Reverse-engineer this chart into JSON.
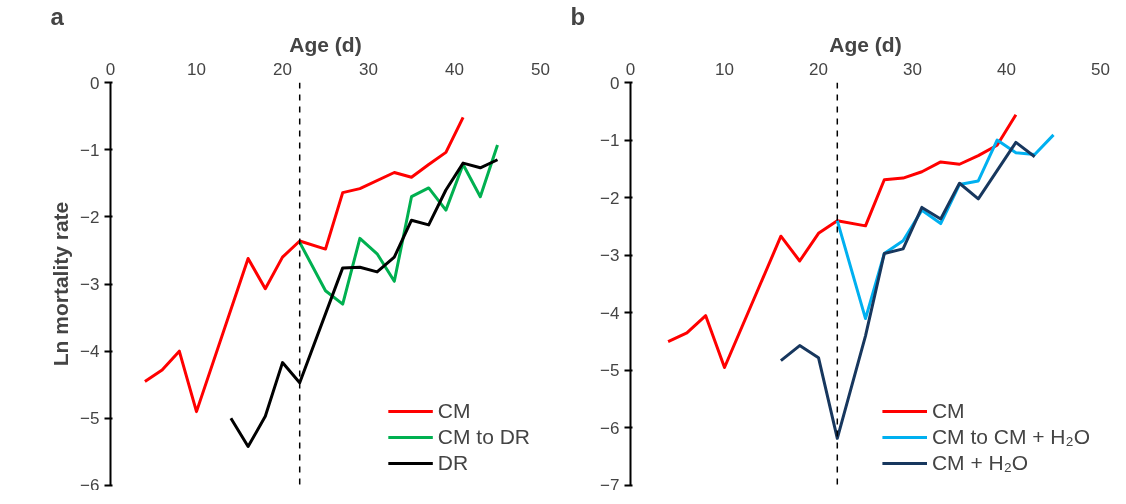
{
  "chart_data": [
    {
      "type": "line",
      "xlabel": "Age (d)",
      "ylabel": "Ln mortality rate",
      "annotations": [
        "a"
      ],
      "xlim": [
        0,
        50
      ],
      "ylim": [
        -6,
        0
      ],
      "xticks": [
        0,
        10,
        20,
        30,
        40,
        50
      ],
      "yticks": [
        0,
        -1,
        -2,
        -3,
        -4,
        -5,
        -6
      ],
      "grid": false,
      "legend": "bottom right",
      "line_style": "solid",
      "ref_lines": [
        {
          "axis": "x",
          "value": 22,
          "label": null,
          "color": "#000000",
          "line_style": "dashed"
        }
      ],
      "series": [
        {
          "name": "CM",
          "color": "#ff0000",
          "x": [
            4,
            6,
            8,
            10,
            16,
            18,
            20,
            22,
            25,
            27,
            29,
            33,
            35,
            37,
            39,
            41
          ],
          "values": [
            -4.45,
            -4.28,
            -4.0,
            -4.9,
            -2.62,
            -3.07,
            -2.6,
            -2.36,
            -2.48,
            -1.64,
            -1.58,
            -1.34,
            -1.41,
            -1.22,
            -1.04,
            -0.52
          ]
        },
        {
          "name": "CM to DR",
          "color": "#00b050",
          "x": [
            22,
            25,
            27,
            29,
            31,
            33,
            35,
            37,
            39,
            41,
            43,
            45
          ],
          "values": [
            -2.38,
            -3.1,
            -3.3,
            -2.32,
            -2.55,
            -2.96,
            -1.7,
            -1.57,
            -1.9,
            -1.22,
            -1.7,
            -0.93
          ]
        },
        {
          "name": "DR",
          "color": "#000000",
          "x": [
            14,
            16,
            18,
            20,
            22,
            27,
            29,
            31,
            33,
            35,
            37,
            39,
            41,
            43,
            45
          ],
          "values": [
            -5.0,
            -5.42,
            -4.97,
            -4.17,
            -4.47,
            -2.76,
            -2.75,
            -2.82,
            -2.6,
            -2.05,
            -2.12,
            -1.6,
            -1.2,
            -1.27,
            -1.15
          ]
        }
      ]
    },
    {
      "type": "line",
      "xlabel": "Age (d)",
      "annotations": [
        "b"
      ],
      "xlim": [
        0,
        50
      ],
      "ylim": [
        -7,
        0
      ],
      "xticks": [
        0,
        10,
        20,
        30,
        40,
        50
      ],
      "yticks": [
        0,
        -1,
        -2,
        -3,
        -4,
        -5,
        -6,
        -7
      ],
      "grid": false,
      "legend": "bottom right",
      "line_style": "solid",
      "ref_lines": [
        {
          "axis": "x",
          "value": 22,
          "label": null,
          "color": "#000000",
          "line_style": "dashed"
        }
      ],
      "series": [
        {
          "name": "CM",
          "color": "#ff0000",
          "x": [
            4,
            6,
            8,
            10,
            16,
            18,
            20,
            22,
            25,
            27,
            29,
            31,
            33,
            35,
            37,
            39,
            41
          ],
          "values": [
            -4.5,
            -4.35,
            -4.05,
            -4.95,
            -2.67,
            -3.1,
            -2.62,
            -2.4,
            -2.49,
            -1.69,
            -1.66,
            -1.55,
            -1.38,
            -1.42,
            -1.27,
            -1.09,
            -0.56
          ]
        },
        {
          "name": "CM to CM + H₂O",
          "color": "#00b0f0",
          "x": [
            22,
            25,
            27,
            29,
            31,
            33,
            35,
            37,
            39,
            41,
            43,
            45
          ],
          "values": [
            -2.4,
            -4.1,
            -2.97,
            -2.75,
            -2.22,
            -2.45,
            -1.77,
            -1.71,
            -1.0,
            -1.22,
            -1.25,
            -0.91
          ]
        },
        {
          "name": "CM + H₂O",
          "color": "#17375e",
          "x": [
            16,
            18,
            20,
            22,
            25,
            27,
            29,
            31,
            33,
            35,
            37,
            41,
            43
          ],
          "values": [
            -4.83,
            -4.57,
            -4.78,
            -6.18,
            -4.4,
            -2.97,
            -2.89,
            -2.17,
            -2.37,
            -1.75,
            -2.02,
            -1.04,
            -1.29
          ]
        }
      ]
    }
  ]
}
